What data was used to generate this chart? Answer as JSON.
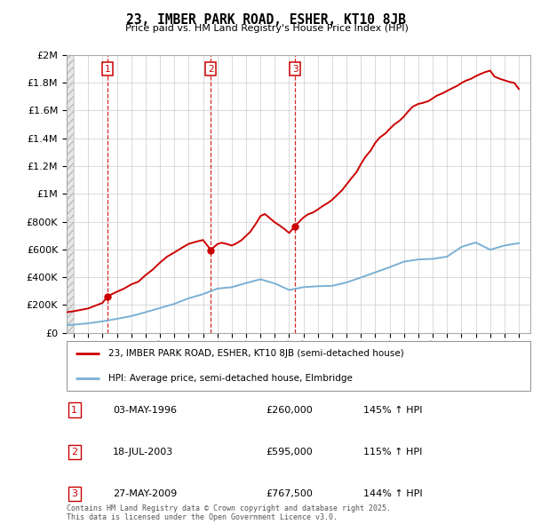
{
  "title": "23, IMBER PARK ROAD, ESHER, KT10 8JB",
  "subtitle": "Price paid vs. HM Land Registry's House Price Index (HPI)",
  "property_label": "23, IMBER PARK ROAD, ESHER, KT10 8JB (semi-detached house)",
  "hpi_label": "HPI: Average price, semi-detached house, Elmbridge",
  "property_color": "#cc0000",
  "hpi_color": "#7ab0d4",
  "sale_marker_color": "#cc0000",
  "dashed_line_color": "#cc0000",
  "sale_points": [
    {
      "year": 1996.34,
      "price": 260000,
      "label": "1",
      "date": "03-MAY-1996",
      "pct": "145% ↑ HPI"
    },
    {
      "year": 2003.54,
      "price": 595000,
      "label": "2",
      "date": "18-JUL-2003",
      "pct": "115% ↑ HPI"
    },
    {
      "year": 2009.41,
      "price": 767500,
      "label": "3",
      "date": "27-MAY-2009",
      "pct": "144% ↑ HPI"
    }
  ],
  "footer": "Contains HM Land Registry data © Crown copyright and database right 2025.\nThis data is licensed under the Open Government Licence v3.0.",
  "ylim": [
    0,
    2000000
  ],
  "yticks": [
    0,
    200000,
    400000,
    600000,
    800000,
    1000000,
    1200000,
    1400000,
    1600000,
    1800000,
    2000000
  ],
  "ytick_labels": [
    "£0",
    "£200K",
    "£400K",
    "£600K",
    "£800K",
    "£1M",
    "£1.2M",
    "£1.4M",
    "£1.6M",
    "£1.8M",
    "£2M"
  ],
  "xmin": 1993.5,
  "xmax": 2025.8,
  "grid_color": "#cccccc",
  "hatch_color": "#dddddd",
  "hatch_end": 1994.0,
  "hpi_years": [
    1993.5,
    1994,
    1995,
    1996,
    1997,
    1998,
    1999,
    2000,
    2001,
    2002,
    2003,
    2004,
    2005,
    2006,
    2007,
    2008,
    2009,
    2010,
    2011,
    2012,
    2013,
    2014,
    2015,
    2016,
    2017,
    2018,
    2019,
    2020,
    2021,
    2022,
    2023,
    2024,
    2025
  ],
  "hpi_values": [
    55000,
    58000,
    68000,
    82000,
    100000,
    120000,
    148000,
    178000,
    208000,
    248000,
    278000,
    318000,
    328000,
    358000,
    385000,
    355000,
    308000,
    328000,
    335000,
    338000,
    362000,
    398000,
    435000,
    472000,
    512000,
    528000,
    532000,
    548000,
    618000,
    650000,
    598000,
    628000,
    645000
  ],
  "prop_years": [
    1993.5,
    1994,
    1995,
    1996.0,
    1996.34,
    1997,
    1997.5,
    1998,
    1998.5,
    1999,
    1999.5,
    2000,
    2000.5,
    2001,
    2001.5,
    2002,
    2002.5,
    2003.0,
    2003.54,
    2004,
    2004.3,
    2004.7,
    2005,
    2005.3,
    2005.7,
    2006,
    2006.3,
    2006.7,
    2007,
    2007.3,
    2007.6,
    2008,
    2008.3,
    2008.7,
    2009.0,
    2009.41,
    2009.7,
    2010,
    2010.3,
    2010.7,
    2011,
    2011.3,
    2011.7,
    2012,
    2012.3,
    2012.7,
    2013,
    2013.3,
    2013.7,
    2014,
    2014.3,
    2014.7,
    2015,
    2015.3,
    2015.7,
    2016,
    2016.3,
    2016.7,
    2017,
    2017.3,
    2017.6,
    2018,
    2018.3,
    2018.7,
    2019,
    2019.3,
    2019.7,
    2020,
    2020.3,
    2020.7,
    2021,
    2021.3,
    2021.7,
    2022,
    2022.3,
    2022.6,
    2023,
    2023.3,
    2023.7,
    2024,
    2024.3,
    2024.7,
    2025
  ],
  "prop_values": [
    148000,
    155000,
    175000,
    215000,
    262000,
    295000,
    318000,
    348000,
    368000,
    415000,
    455000,
    505000,
    548000,
    578000,
    610000,
    640000,
    655000,
    668000,
    597000,
    638000,
    648000,
    638000,
    628000,
    642000,
    668000,
    698000,
    728000,
    788000,
    840000,
    855000,
    830000,
    795000,
    775000,
    745000,
    718000,
    769000,
    800000,
    830000,
    852000,
    868000,
    888000,
    910000,
    935000,
    958000,
    988000,
    1028000,
    1068000,
    1108000,
    1158000,
    1215000,
    1265000,
    1315000,
    1368000,
    1405000,
    1435000,
    1468000,
    1498000,
    1528000,
    1558000,
    1595000,
    1628000,
    1648000,
    1655000,
    1668000,
    1688000,
    1708000,
    1725000,
    1742000,
    1758000,
    1778000,
    1798000,
    1815000,
    1830000,
    1848000,
    1862000,
    1875000,
    1888000,
    1845000,
    1828000,
    1818000,
    1808000,
    1798000,
    1755000
  ]
}
